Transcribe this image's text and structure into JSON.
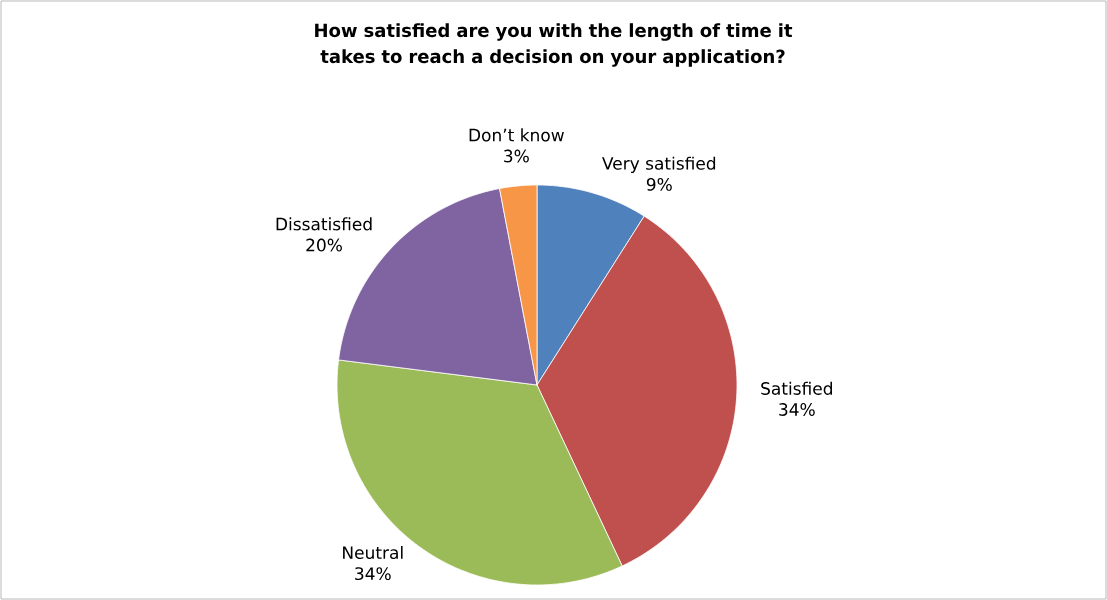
{
  "chart_data": {
    "type": "pie",
    "title": "How satisfied are you with the length of time it takes to reach a decision on your application?",
    "categories": [
      "Very satisfied",
      "Satisfied",
      "Neutral",
      "Dissatisfied",
      "Don’t know"
    ],
    "values": [
      9,
      34,
      34,
      20,
      3
    ],
    "value_labels": [
      "9%",
      "34%",
      "34%",
      "20%",
      "3%"
    ],
    "colors": [
      "#4f81bd",
      "#c0504d",
      "#9bbb59",
      "#8064a2",
      "#f79646"
    ]
  }
}
